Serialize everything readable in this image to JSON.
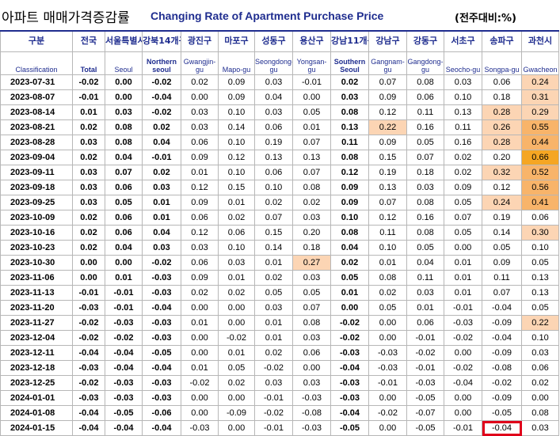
{
  "title": {
    "korean": "아파트 매매가격증감률",
    "english": "Changing Rate of Apartment Purchase Price",
    "unit": "(전주대비:%)"
  },
  "colors": {
    "header_text": "#1f2d8f",
    "heat_light": "#fcd5b4",
    "heat_medium": "#f8b46a",
    "heat_strong": "#f5a623",
    "heat_darkest": "#f07a18",
    "highlight_box": "#e0001a"
  },
  "columns": [
    {
      "ko": "구분",
      "en": "Classification"
    },
    {
      "ko": "전국",
      "en": "Total"
    },
    {
      "ko": "서울특별시",
      "en": "Seoul"
    },
    {
      "ko": "강북14개구",
      "en": "Northern seoul"
    },
    {
      "ko": "광진구",
      "en": "Gwangjin-gu"
    },
    {
      "ko": "마포구",
      "en": "Mapo-gu"
    },
    {
      "ko": "성동구",
      "en": "Seongdong-gu"
    },
    {
      "ko": "용산구",
      "en": "Yongsan-gu"
    },
    {
      "ko": "강남11개구",
      "en": "Southern Seoul"
    },
    {
      "ko": "강남구",
      "en": "Gangnam-gu"
    },
    {
      "ko": "강동구",
      "en": "Gangdong-gu"
    },
    {
      "ko": "서초구",
      "en": "Seocho-gu"
    },
    {
      "ko": "송파구",
      "en": "Songpa-gu"
    },
    {
      "ko": "과천시",
      "en": "Gwacheon"
    }
  ],
  "rows": [
    {
      "date": "2023-07-31",
      "v": [
        "-0.02",
        "0.00",
        "-0.02",
        "0.02",
        "0.09",
        "0.03",
        "-0.01",
        "0.02",
        "0.07",
        "0.08",
        "0.03",
        "0.06",
        "0.24"
      ],
      "heat": [
        0,
        0,
        0,
        0,
        0,
        0,
        0,
        0,
        0,
        0,
        0,
        0,
        1
      ]
    },
    {
      "date": "2023-08-07",
      "v": [
        "-0.01",
        "0.00",
        "-0.04",
        "0.00",
        "0.09",
        "0.04",
        "0.00",
        "0.03",
        "0.09",
        "0.06",
        "0.10",
        "0.18",
        "0.31"
      ],
      "heat": [
        0,
        0,
        0,
        0,
        0,
        0,
        0,
        0,
        0,
        0,
        0,
        0,
        1
      ]
    },
    {
      "date": "2023-08-14",
      "v": [
        "0.01",
        "0.03",
        "-0.02",
        "0.03",
        "0.10",
        "0.03",
        "0.05",
        "0.08",
        "0.12",
        "0.11",
        "0.13",
        "0.28",
        "0.29"
      ],
      "heat": [
        0,
        0,
        0,
        0,
        0,
        0,
        0,
        0,
        0,
        0,
        0,
        1,
        1
      ]
    },
    {
      "date": "2023-08-21",
      "v": [
        "0.02",
        "0.08",
        "0.02",
        "0.03",
        "0.14",
        "0.06",
        "0.01",
        "0.13",
        "0.22",
        "0.16",
        "0.11",
        "0.26",
        "0.55"
      ],
      "heat": [
        0,
        0,
        0,
        0,
        0,
        0,
        0,
        0,
        1,
        0,
        0,
        1,
        2
      ]
    },
    {
      "date": "2023-08-28",
      "v": [
        "0.03",
        "0.08",
        "0.04",
        "0.06",
        "0.10",
        "0.19",
        "0.07",
        "0.11",
        "0.09",
        "0.05",
        "0.16",
        "0.28",
        "0.44"
      ],
      "heat": [
        0,
        0,
        0,
        0,
        0,
        0,
        0,
        0,
        0,
        0,
        0,
        1,
        2
      ]
    },
    {
      "date": "2023-09-04",
      "v": [
        "0.02",
        "0.04",
        "-0.01",
        "0.09",
        "0.12",
        "0.13",
        "0.13",
        "0.08",
        "0.15",
        "0.07",
        "0.02",
        "0.20",
        "0.66"
      ],
      "heat": [
        0,
        0,
        0,
        0,
        0,
        0,
        0,
        0,
        0,
        0,
        0,
        0,
        3
      ]
    },
    {
      "date": "2023-09-11",
      "v": [
        "0.03",
        "0.07",
        "0.02",
        "0.01",
        "0.10",
        "0.06",
        "0.07",
        "0.12",
        "0.19",
        "0.18",
        "0.02",
        "0.32",
        "0.52"
      ],
      "heat": [
        0,
        0,
        0,
        0,
        0,
        0,
        0,
        0,
        0,
        0,
        0,
        1,
        2
      ]
    },
    {
      "date": "2023-09-18",
      "v": [
        "0.03",
        "0.06",
        "0.03",
        "0.12",
        "0.15",
        "0.10",
        "0.08",
        "0.09",
        "0.13",
        "0.03",
        "0.09",
        "0.12",
        "0.56"
      ],
      "heat": [
        0,
        0,
        0,
        0,
        0,
        0,
        0,
        0,
        0,
        0,
        0,
        0,
        2
      ]
    },
    {
      "date": "2023-09-25",
      "v": [
        "0.03",
        "0.05",
        "0.01",
        "0.09",
        "0.01",
        "0.02",
        "0.02",
        "0.09",
        "0.07",
        "0.08",
        "0.05",
        "0.24",
        "0.41"
      ],
      "heat": [
        0,
        0,
        0,
        0,
        0,
        0,
        0,
        0,
        0,
        0,
        0,
        1,
        2
      ]
    },
    {
      "date": "2023-10-09",
      "v": [
        "0.02",
        "0.06",
        "0.01",
        "0.06",
        "0.02",
        "0.07",
        "0.03",
        "0.10",
        "0.12",
        "0.16",
        "0.07",
        "0.19",
        "0.06"
      ],
      "heat": [
        0,
        0,
        0,
        0,
        0,
        0,
        0,
        0,
        0,
        0,
        0,
        0,
        0
      ]
    },
    {
      "date": "2023-10-16",
      "v": [
        "0.02",
        "0.06",
        "0.04",
        "0.12",
        "0.06",
        "0.15",
        "0.20",
        "0.08",
        "0.11",
        "0.08",
        "0.05",
        "0.14",
        "0.30"
      ],
      "heat": [
        0,
        0,
        0,
        0,
        0,
        0,
        0,
        0,
        0,
        0,
        0,
        0,
        1
      ]
    },
    {
      "date": "2023-10-23",
      "v": [
        "0.02",
        "0.04",
        "0.03",
        "0.03",
        "0.10",
        "0.14",
        "0.18",
        "0.04",
        "0.10",
        "0.05",
        "0.00",
        "0.05",
        "0.10"
      ],
      "heat": [
        0,
        0,
        0,
        0,
        0,
        0,
        0,
        0,
        0,
        0,
        0,
        0,
        0
      ]
    },
    {
      "date": "2023-10-30",
      "v": [
        "0.00",
        "0.00",
        "-0.02",
        "0.06",
        "0.03",
        "0.01",
        "0.27",
        "0.02",
        "0.01",
        "0.04",
        "0.01",
        "0.09",
        "0.05"
      ],
      "heat": [
        0,
        0,
        0,
        0,
        0,
        0,
        1,
        0,
        0,
        0,
        0,
        0,
        0
      ]
    },
    {
      "date": "2023-11-06",
      "v": [
        "0.00",
        "0.01",
        "-0.03",
        "0.09",
        "0.01",
        "0.02",
        "0.03",
        "0.05",
        "0.08",
        "0.11",
        "0.01",
        "0.11",
        "0.13"
      ],
      "heat": [
        0,
        0,
        0,
        0,
        0,
        0,
        0,
        0,
        0,
        0,
        0,
        0,
        0
      ]
    },
    {
      "date": "2023-11-13",
      "v": [
        "-0.01",
        "-0.01",
        "-0.03",
        "0.02",
        "0.02",
        "0.05",
        "0.05",
        "0.01",
        "0.02",
        "0.03",
        "0.01",
        "0.07",
        "0.13"
      ],
      "heat": [
        0,
        0,
        0,
        0,
        0,
        0,
        0,
        0,
        0,
        0,
        0,
        0,
        0
      ]
    },
    {
      "date": "2023-11-20",
      "v": [
        "-0.03",
        "-0.01",
        "-0.04",
        "0.00",
        "0.00",
        "0.03",
        "0.07",
        "0.00",
        "0.05",
        "0.01",
        "-0.01",
        "-0.04",
        "0.05"
      ],
      "heat": [
        0,
        0,
        0,
        0,
        0,
        0,
        0,
        0,
        0,
        0,
        0,
        0,
        0
      ]
    },
    {
      "date": "2023-11-27",
      "v": [
        "-0.02",
        "-0.03",
        "-0.03",
        "0.01",
        "0.00",
        "0.01",
        "0.08",
        "-0.02",
        "0.00",
        "0.06",
        "-0.03",
        "-0.09",
        "0.22"
      ],
      "heat": [
        0,
        0,
        0,
        0,
        0,
        0,
        0,
        0,
        0,
        0,
        0,
        0,
        1
      ]
    },
    {
      "date": "2023-12-04",
      "v": [
        "-0.02",
        "-0.02",
        "-0.03",
        "0.00",
        "-0.02",
        "0.01",
        "0.03",
        "-0.02",
        "0.00",
        "-0.01",
        "-0.02",
        "-0.04",
        "0.10"
      ],
      "heat": [
        0,
        0,
        0,
        0,
        0,
        0,
        0,
        0,
        0,
        0,
        0,
        0,
        0
      ]
    },
    {
      "date": "2023-12-11",
      "v": [
        "-0.04",
        "-0.04",
        "-0.05",
        "0.00",
        "0.01",
        "0.02",
        "0.06",
        "-0.03",
        "-0.03",
        "-0.02",
        "0.00",
        "-0.09",
        "0.03"
      ],
      "heat": [
        0,
        0,
        0,
        0,
        0,
        0,
        0,
        0,
        0,
        0,
        0,
        0,
        0
      ]
    },
    {
      "date": "2023-12-18",
      "v": [
        "-0.03",
        "-0.04",
        "-0.04",
        "0.01",
        "0.05",
        "-0.02",
        "0.00",
        "-0.04",
        "-0.03",
        "-0.01",
        "-0.02",
        "-0.08",
        "0.06"
      ],
      "heat": [
        0,
        0,
        0,
        0,
        0,
        0,
        0,
        0,
        0,
        0,
        0,
        0,
        0
      ]
    },
    {
      "date": "2023-12-25",
      "v": [
        "-0.02",
        "-0.03",
        "-0.03",
        "-0.02",
        "0.02",
        "0.03",
        "0.03",
        "-0.03",
        "-0.01",
        "-0.03",
        "-0.04",
        "-0.02",
        "0.02"
      ],
      "heat": [
        0,
        0,
        0,
        0,
        0,
        0,
        0,
        0,
        0,
        0,
        0,
        0,
        0
      ]
    },
    {
      "date": "2024-01-01",
      "v": [
        "-0.03",
        "-0.03",
        "-0.03",
        "0.00",
        "0.00",
        "-0.01",
        "-0.03",
        "-0.03",
        "0.00",
        "-0.05",
        "0.00",
        "-0.09",
        "0.00"
      ],
      "heat": [
        0,
        0,
        0,
        0,
        0,
        0,
        0,
        0,
        0,
        0,
        0,
        0,
        0
      ]
    },
    {
      "date": "2024-01-08",
      "v": [
        "-0.04",
        "-0.05",
        "-0.06",
        "0.00",
        "-0.09",
        "-0.02",
        "-0.08",
        "-0.04",
        "-0.02",
        "-0.07",
        "0.00",
        "-0.05",
        "0.08"
      ],
      "heat": [
        0,
        0,
        0,
        0,
        0,
        0,
        0,
        0,
        0,
        0,
        0,
        0,
        0
      ]
    },
    {
      "date": "2024-01-15",
      "v": [
        "-0.04",
        "-0.04",
        "-0.04",
        "-0.03",
        "0.00",
        "-0.01",
        "-0.03",
        "-0.05",
        "0.00",
        "-0.05",
        "-0.01",
        "-0.04",
        "0.03"
      ],
      "heat": [
        0,
        0,
        0,
        0,
        0,
        0,
        0,
        0,
        0,
        0,
        0,
        0,
        0
      ],
      "highlight_col": 11
    }
  ]
}
